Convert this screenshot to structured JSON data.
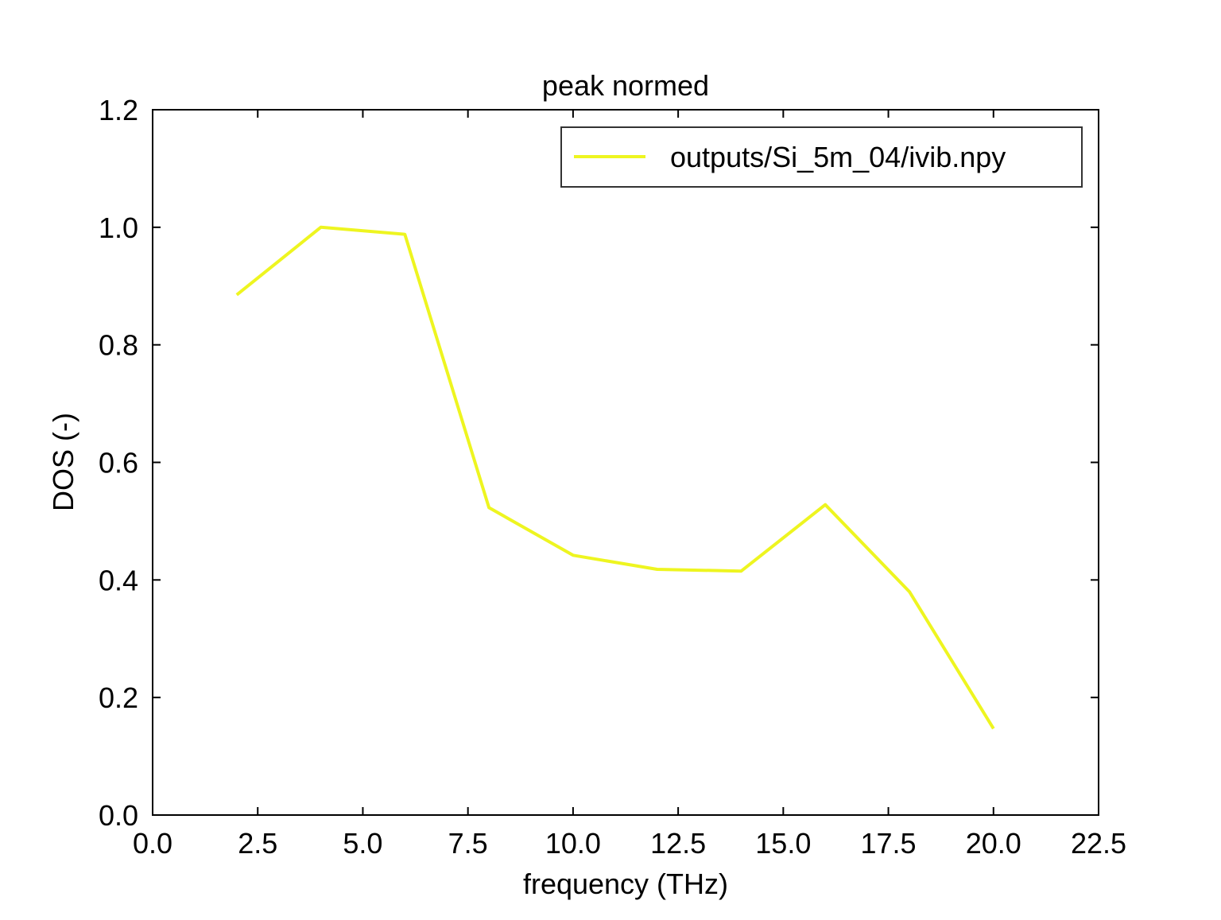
{
  "chart_data": {
    "type": "line",
    "title": "peak normed",
    "xlabel": "frequency (THz)",
    "ylabel": "DOS (-)",
    "xlim": [
      0,
      22.5
    ],
    "ylim": [
      0,
      1.2
    ],
    "xticks": [
      0,
      2.5,
      5,
      7.5,
      10,
      12.5,
      15,
      17.5,
      20,
      22.5
    ],
    "xtick_labels": [
      "0.0",
      "2.5",
      "5.0",
      "7.5",
      "10.0",
      "12.5",
      "15.0",
      "17.5",
      "20.0",
      "22.5"
    ],
    "yticks": [
      0,
      0.2,
      0.4,
      0.6,
      0.8,
      1.0,
      1.2
    ],
    "ytick_labels": [
      "0.0",
      "0.2",
      "0.4",
      "0.6",
      "0.8",
      "1.0",
      "1.2"
    ],
    "grid": false,
    "legend_position": "top-right",
    "series": [
      {
        "name": "outputs/Si_5m_04/ivib.npy",
        "color": "#eef520",
        "x": [
          2,
          4,
          6,
          8,
          10,
          12,
          14,
          16,
          18,
          20
        ],
        "y": [
          0.885,
          1.0,
          0.988,
          0.523,
          0.442,
          0.418,
          0.415,
          0.528,
          0.38,
          0.147
        ]
      }
    ]
  }
}
